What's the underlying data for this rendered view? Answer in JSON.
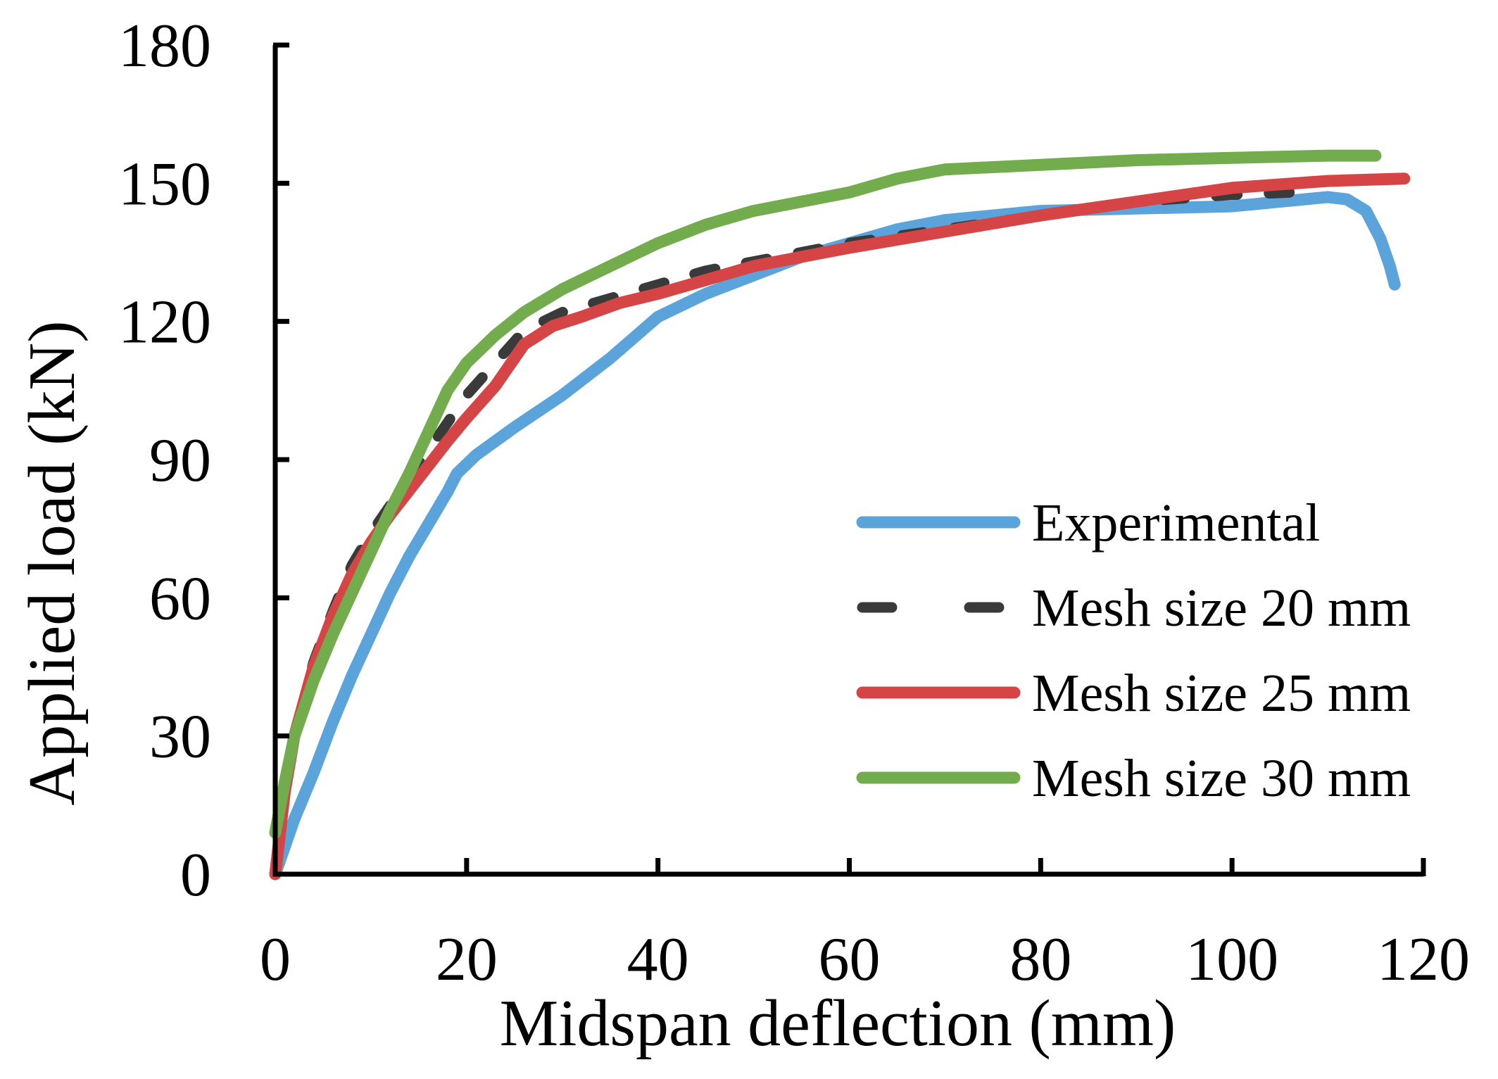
{
  "chart_data": {
    "type": "line",
    "title": "",
    "xlabel": "Midspan deflection (mm)",
    "ylabel": "Applied load (kN)",
    "xlim": [
      0,
      120
    ],
    "ylim": [
      0,
      180
    ],
    "xticks": [
      0,
      20,
      40,
      60,
      80,
      100,
      120
    ],
    "yticks": [
      0,
      30,
      60,
      90,
      120,
      150,
      180
    ],
    "grid": false,
    "legend_position": "right",
    "series": [
      {
        "name": "Experimental",
        "color": "#5ba4db",
        "dash": false,
        "points": [
          [
            0,
            0
          ],
          [
            2,
            12
          ],
          [
            4,
            22
          ],
          [
            6,
            33
          ],
          [
            8,
            43
          ],
          [
            10,
            52
          ],
          [
            12,
            61
          ],
          [
            14,
            69
          ],
          [
            16,
            76
          ],
          [
            18,
            83
          ],
          [
            19,
            87
          ],
          [
            21,
            91
          ],
          [
            25,
            97
          ],
          [
            30,
            104
          ],
          [
            35,
            112
          ],
          [
            40,
            121
          ],
          [
            45,
            126
          ],
          [
            50,
            130
          ],
          [
            55,
            134
          ],
          [
            60,
            137
          ],
          [
            65,
            140
          ],
          [
            70,
            142
          ],
          [
            80,
            144
          ],
          [
            90,
            144.5
          ],
          [
            100,
            145
          ],
          [
            105,
            146
          ],
          [
            110,
            147
          ],
          [
            112,
            146.5
          ],
          [
            114,
            144
          ],
          [
            115.5,
            138
          ],
          [
            116.5,
            132
          ],
          [
            117,
            128
          ]
        ]
      },
      {
        "name": "Mesh size 20 mm",
        "color": "#3a3a3a",
        "dash": true,
        "points": [
          [
            0,
            0
          ],
          [
            1,
            18
          ],
          [
            2,
            30
          ],
          [
            4,
            46
          ],
          [
            6,
            57
          ],
          [
            8,
            67
          ],
          [
            10,
            74
          ],
          [
            12,
            80
          ],
          [
            15,
            89
          ],
          [
            18,
            98
          ],
          [
            20,
            104
          ],
          [
            23,
            111
          ],
          [
            26,
            118
          ],
          [
            30,
            122
          ],
          [
            35,
            125
          ],
          [
            40,
            128
          ],
          [
            45,
            131
          ],
          [
            50,
            133
          ],
          [
            55,
            135
          ],
          [
            60,
            137
          ],
          [
            70,
            140
          ],
          [
            80,
            143
          ],
          [
            90,
            146
          ],
          [
            100,
            147.5
          ],
          [
            106,
            148
          ]
        ]
      },
      {
        "name": "Mesh size 25 mm",
        "color": "#d64545",
        "dash": false,
        "points": [
          [
            0,
            0
          ],
          [
            1,
            18
          ],
          [
            2,
            30
          ],
          [
            4,
            45
          ],
          [
            6,
            56
          ],
          [
            8,
            65
          ],
          [
            10,
            72
          ],
          [
            12,
            78
          ],
          [
            15,
            86
          ],
          [
            18,
            94
          ],
          [
            20,
            99
          ],
          [
            23,
            106
          ],
          [
            26,
            115
          ],
          [
            29,
            119
          ],
          [
            32,
            121
          ],
          [
            36,
            124
          ],
          [
            40,
            126
          ],
          [
            45,
            129
          ],
          [
            50,
            132
          ],
          [
            55,
            134
          ],
          [
            60,
            136
          ],
          [
            70,
            139.5
          ],
          [
            80,
            143
          ],
          [
            90,
            146
          ],
          [
            100,
            149
          ],
          [
            110,
            150.5
          ],
          [
            118,
            151
          ]
        ]
      },
      {
        "name": "Mesh size 30 mm",
        "color": "#72ac4d",
        "dash": false,
        "points": [
          [
            0,
            9
          ],
          [
            1,
            20
          ],
          [
            2,
            30
          ],
          [
            4,
            42
          ],
          [
            6,
            52
          ],
          [
            8,
            61
          ],
          [
            10,
            70
          ],
          [
            12,
            79
          ],
          [
            14,
            87
          ],
          [
            16,
            96
          ],
          [
            18,
            105
          ],
          [
            20,
            111
          ],
          [
            23,
            117
          ],
          [
            26,
            122
          ],
          [
            30,
            127
          ],
          [
            35,
            132
          ],
          [
            40,
            137
          ],
          [
            45,
            141
          ],
          [
            50,
            144
          ],
          [
            55,
            146
          ],
          [
            60,
            148
          ],
          [
            65,
            151
          ],
          [
            70,
            153
          ],
          [
            80,
            154
          ],
          [
            90,
            155
          ],
          [
            100,
            155.5
          ],
          [
            110,
            156
          ],
          [
            115,
            156
          ]
        ]
      }
    ]
  }
}
